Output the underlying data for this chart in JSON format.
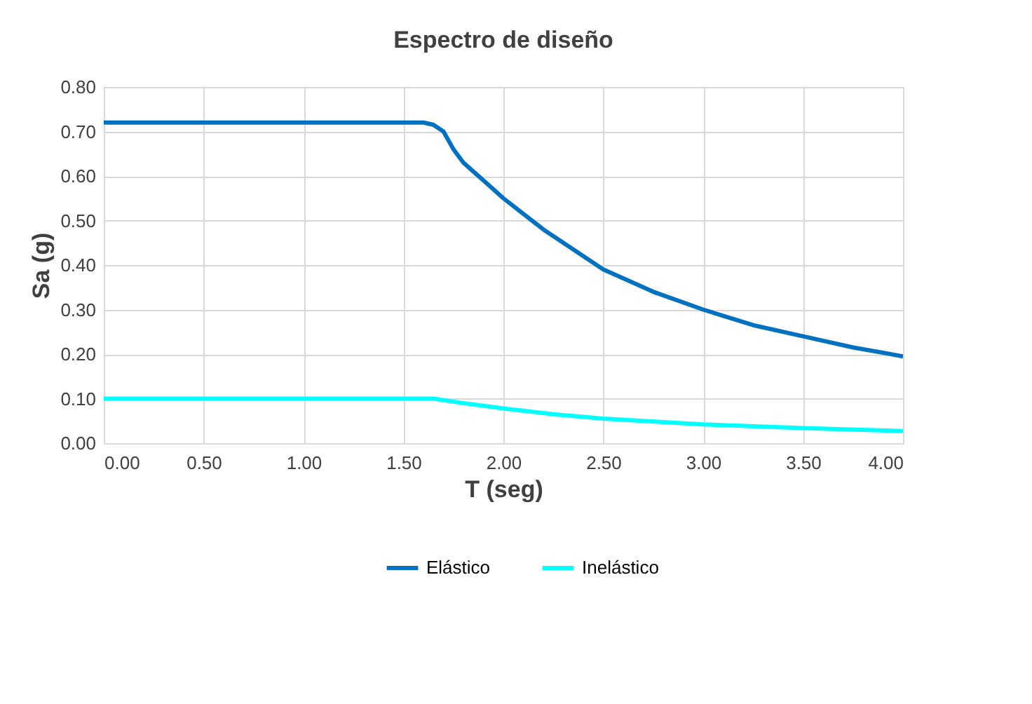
{
  "chart_data": {
    "type": "line",
    "title": "Espectro de diseño",
    "xlabel": "T (seg)",
    "ylabel": "Sa (g)",
    "xlim": [
      0,
      4
    ],
    "xticks": [
      {
        "value": 0,
        "label": "0.00"
      },
      {
        "value": 0.5,
        "label": "0.50"
      },
      {
        "value": 1,
        "label": "1.00"
      },
      {
        "value": 1.5,
        "label": "1.50"
      },
      {
        "value": 2,
        "label": "2.00"
      },
      {
        "value": 2.5,
        "label": "2.50"
      },
      {
        "value": 3,
        "label": "3.00"
      },
      {
        "value": 3.5,
        "label": "3.50"
      },
      {
        "value": 4,
        "label": "4.00"
      }
    ],
    "ylim": [
      0,
      0.8
    ],
    "yticks": [
      {
        "value": 0,
        "label": "0.00"
      },
      {
        "value": 0.1,
        "label": "0.10"
      },
      {
        "value": 0.2,
        "label": "0.20"
      },
      {
        "value": 0.3,
        "label": "0.30"
      },
      {
        "value": 0.4,
        "label": "0.40"
      },
      {
        "value": 0.5,
        "label": "0.50"
      },
      {
        "value": 0.6,
        "label": "0.60"
      },
      {
        "value": 0.7,
        "label": "0.70"
      },
      {
        "value": 0.8,
        "label": "0.80"
      }
    ],
    "grid": true,
    "legend": "bottom",
    "marker": "none",
    "line_style": "solid",
    "series": [
      {
        "name": "Elástico",
        "color": "#0070c0",
        "x": [
          0,
          1.5,
          1.6,
          1.65,
          1.7,
          1.75,
          1.8,
          1.9,
          2.0,
          2.2,
          2.5,
          2.75,
          3.0,
          3.25,
          3.5,
          3.75,
          4.0
        ],
        "values": [
          0.72,
          0.72,
          0.72,
          0.715,
          0.7,
          0.66,
          0.63,
          0.59,
          0.55,
          0.48,
          0.39,
          0.34,
          0.3,
          0.265,
          0.24,
          0.215,
          0.195
        ]
      },
      {
        "name": "Inelástico",
        "color": "#00ffff",
        "x": [
          0,
          1.65,
          1.8,
          2.0,
          2.25,
          2.5,
          3.0,
          3.5,
          4.0
        ],
        "values": [
          0.1,
          0.1,
          0.09,
          0.078,
          0.065,
          0.055,
          0.042,
          0.034,
          0.027
        ]
      }
    ]
  }
}
